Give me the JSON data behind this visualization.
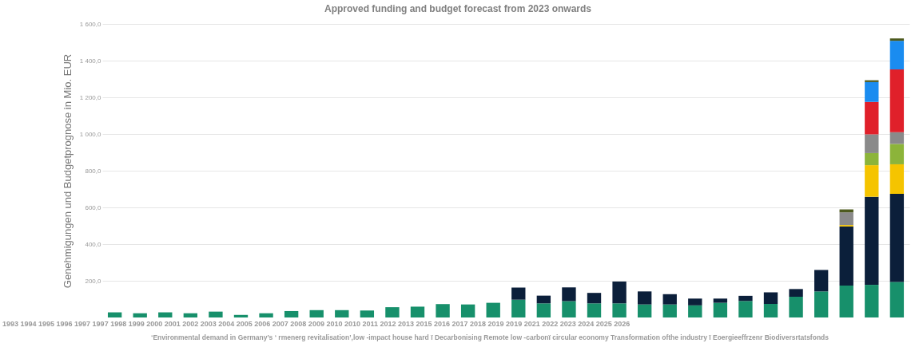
{
  "chart_data": {
    "type": "bar",
    "title": "Approved funding and budget forecast from 2023 onwards",
    "ylabel": "Genehmigungen und Budgetprognose in Mio. EUR",
    "categories": [
      null,
      null,
      null,
      null,
      null,
      null,
      null,
      null,
      null,
      null,
      null,
      null,
      null,
      null,
      null,
      null,
      null,
      null,
      null,
      null,
      null,
      null,
      null,
      null,
      null,
      null,
      null,
      null,
      null,
      null,
      null,
      null
    ],
    "stacked": true,
    "series": [
      {
        "color": "#17906b",
        "values": [
          28,
          23,
          28,
          23,
          32,
          14,
          23,
          35,
          40,
          40,
          38,
          56,
          59,
          73,
          71,
          80,
          97,
          77,
          89,
          77,
          77,
          71,
          71,
          66,
          80,
          90,
          74,
          113,
          142,
          174,
          178,
          194
        ]
      },
      {
        "color": "#0b1f3a",
        "values": [
          null,
          null,
          null,
          null,
          null,
          null,
          null,
          null,
          null,
          null,
          null,
          null,
          null,
          null,
          null,
          null,
          66,
          42,
          75,
          57,
          119,
          71,
          56,
          37,
          23,
          28,
          63,
          42,
          117,
          322,
          480,
          480
        ]
      },
      {
        "color": "#f5c400",
        "values": [
          null,
          null,
          null,
          null,
          null,
          null,
          null,
          null,
          null,
          null,
          null,
          null,
          null,
          null,
          null,
          null,
          null,
          null,
          null,
          null,
          null,
          null,
          null,
          null,
          null,
          null,
          null,
          null,
          null,
          8,
          172,
          161
        ]
      },
      {
        "color": "#8cb43a",
        "values": [
          null,
          null,
          null,
          null,
          null,
          null,
          null,
          null,
          null,
          null,
          null,
          null,
          null,
          null,
          null,
          null,
          null,
          null,
          null,
          null,
          null,
          null,
          null,
          null,
          null,
          null,
          null,
          null,
          null,
          null,
          66,
          111
        ]
      },
      {
        "color": "#8a8a8a",
        "values": [
          null,
          null,
          null,
          null,
          null,
          null,
          null,
          null,
          null,
          null,
          null,
          null,
          null,
          null,
          null,
          null,
          null,
          null,
          null,
          null,
          null,
          null,
          null,
          null,
          null,
          null,
          null,
          null,
          null,
          69,
          102,
          64
        ]
      },
      {
        "color": "#e0202a",
        "values": [
          null,
          null,
          null,
          null,
          null,
          null,
          null,
          null,
          null,
          null,
          null,
          null,
          null,
          null,
          null,
          null,
          null,
          null,
          null,
          null,
          null,
          null,
          null,
          null,
          null,
          null,
          null,
          null,
          null,
          null,
          177,
          342
        ]
      },
      {
        "color": "#1a8cf0",
        "values": [
          null,
          null,
          null,
          null,
          null,
          null,
          null,
          null,
          null,
          null,
          null,
          null,
          null,
          null,
          null,
          null,
          null,
          null,
          null,
          null,
          null,
          null,
          null,
          null,
          null,
          null,
          null,
          null,
          null,
          null,
          108,
          156
        ]
      },
      {
        "color": "#4d5a1e",
        "values": [
          null,
          null,
          null,
          null,
          null,
          null,
          null,
          null,
          null,
          null,
          null,
          null,
          null,
          null,
          null,
          null,
          null,
          null,
          null,
          null,
          null,
          null,
          null,
          null,
          null,
          null,
          null,
          null,
          null,
          16,
          10,
          13
        ]
      }
    ],
    "ylim": [
      0,
      1600
    ],
    "yticks": [
      {
        "value": 200,
        "label": "200,0"
      },
      {
        "value": 400,
        "label": "400,0"
      },
      {
        "value": 600,
        "label": "600,0"
      },
      {
        "value": 800,
        "label": "800,0"
      },
      {
        "value": 1000,
        "label": "1 000,0"
      },
      {
        "value": 1200,
        "label": "1 200,0"
      },
      {
        "value": 1400,
        "label": "1 400,0"
      },
      {
        "value": 1600,
        "label": "1 600,0"
      }
    ],
    "grid": "y",
    "annotations": [
      "1993 1994 1995 1996 1997 1997 1998 1999 2000 2001 2002 2003 2004 2005 2006 2007 2008 2009 2010 2010 2011 2012 2013 2015 2016 2017 2018 2019 2019 2021 2022 2023 2024 2025 2026",
      "‘Environmental demand in Germany’s ‘ rmenerg revitalisation’,low -impact house hard ï Decarbonising Remote low -carbonï circular economy Transformation ofthe industry  ï Eoergieeffrzenr Biodiversrtatsfonds"
    ]
  }
}
